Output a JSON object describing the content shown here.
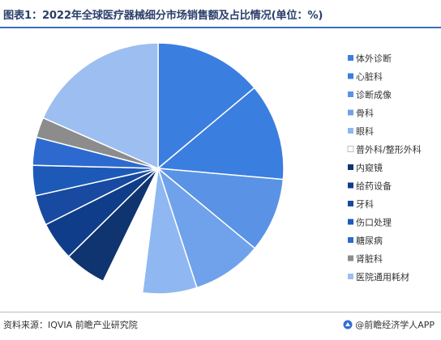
{
  "header": {
    "title": "图表1：2022年全球医疗器械细分市场销售额及占比情况(单位：%)"
  },
  "footer": {
    "source": "资料来源：IQVIA 前瞻产业研究院",
    "brand": "@前瞻经济学人APP"
  },
  "watermark": {
    "text": "前瞻产业研究院"
  },
  "chart_data": {
    "type": "pie",
    "title": "",
    "legend_position": "right",
    "categories": [
      "体外诊断",
      "心脏科",
      "诊断成像",
      "骨科",
      "眼科",
      "普外科/整形外科",
      "内窥镜",
      "给药设备",
      "牙科",
      "伤口处理",
      "糖尿病",
      "肾脏科",
      "医院通用耗材"
    ],
    "values": [
      13.9,
      12.5,
      9.6,
      9.0,
      7.0,
      5.2,
      5.4,
      5.0,
      3.9,
      3.9,
      3.6,
      2.6,
      18.4
    ],
    "unit": "%",
    "colors": [
      "#3a7ee0",
      "#3a7ee0",
      "#5a93e5",
      "#6fa2ea",
      "#8fb8f2",
      "#ffffff",
      "#10346f",
      "#0f3d8a",
      "#174aa0",
      "#1d5ab8",
      "#2c6ad0",
      "#8c8c8c",
      "#9dbef0"
    ]
  }
}
